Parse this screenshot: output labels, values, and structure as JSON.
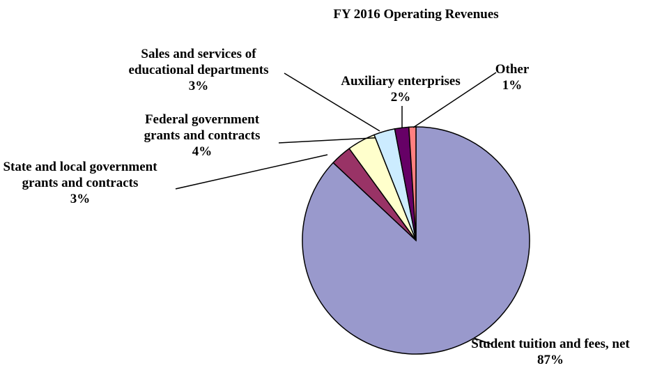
{
  "chart_data": {
    "type": "pie",
    "title": "FY 2016 Operating Revenues",
    "categories": [
      "Student tuition and fees, net",
      "State and local government grants and contracts",
      "Federal government grants and contracts",
      "Sales and services of educational departments",
      "Auxiliary enterprises",
      "Other"
    ],
    "values": [
      87,
      3,
      4,
      3,
      2,
      1
    ],
    "value_labels": [
      "87%",
      "3%",
      "4%",
      "3%",
      "2%",
      "1%"
    ],
    "colors": [
      "#9999cc",
      "#993366",
      "#ffffcc",
      "#ccecff",
      "#660066",
      "#ff8080"
    ]
  }
}
